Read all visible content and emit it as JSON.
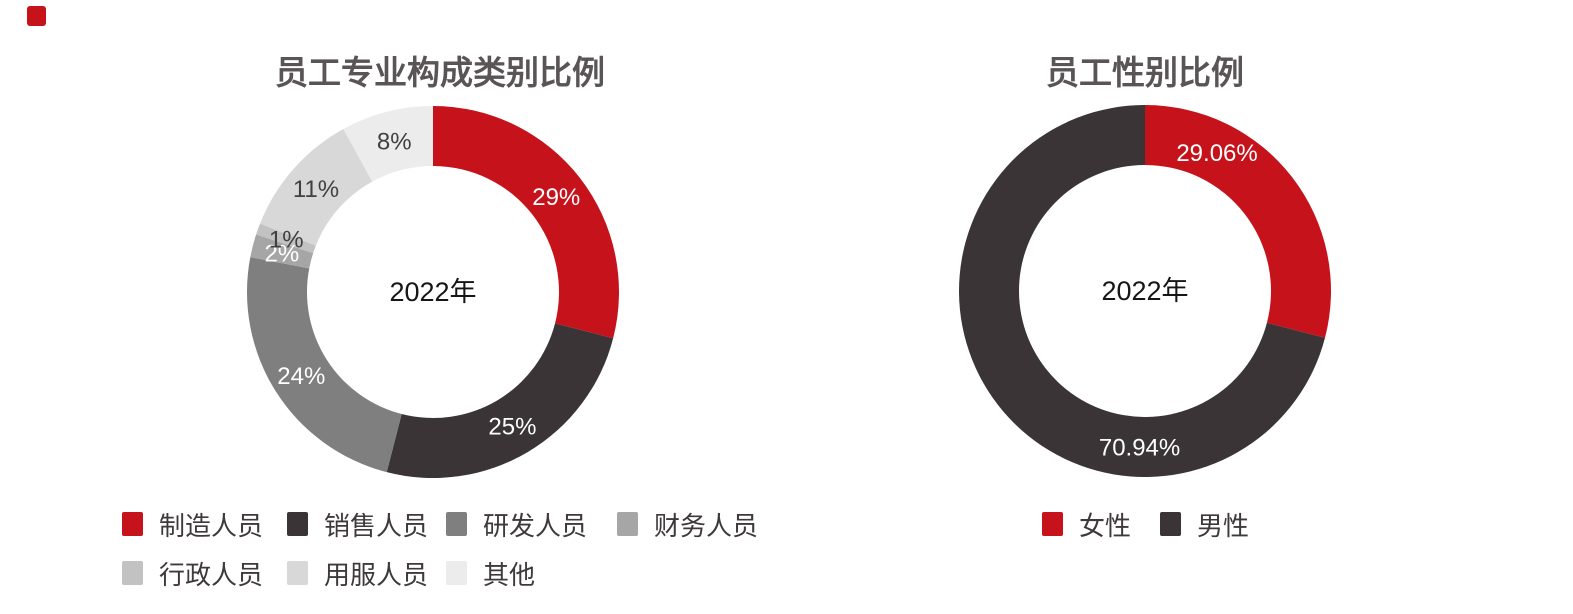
{
  "page": {
    "background": "#ffffff"
  },
  "decor": {
    "corner_mark_color": "#c6121a"
  },
  "chart_data": [
    {
      "type": "donut",
      "title": "员工专业构成类别比例",
      "center_label": "2022年",
      "legend_position": "bottom",
      "segments": [
        {
          "label": "制造人员",
          "value": 29,
          "display": "29%",
          "color": "#c6121a",
          "label_color": "#ffffff"
        },
        {
          "label": "销售人员",
          "value": 25,
          "display": "25%",
          "color": "#3a3436",
          "label_color": "#ffffff"
        },
        {
          "label": "研发人员",
          "value": 24,
          "display": "24%",
          "color": "#7f7f7f",
          "label_color": "#ffffff"
        },
        {
          "label": "财务人员",
          "value": 2,
          "display": "2%",
          "color": "#a6a6a6",
          "label_color": "#ffffff"
        },
        {
          "label": "行政人员",
          "value": 1,
          "display": "1%",
          "color": "#c2c2c2",
          "label_color": "#404040"
        },
        {
          "label": "用服人员",
          "value": 11,
          "display": "11%",
          "color": "#d8d8d8",
          "label_color": "#404040"
        },
        {
          "label": "其他",
          "value": 8,
          "display": "8%",
          "color": "#ececec",
          "label_color": "#404040"
        }
      ]
    },
    {
      "type": "donut",
      "title": "员工性别比例",
      "center_label": "2022年",
      "legend_position": "bottom",
      "segments": [
        {
          "label": "女性",
          "value": 29.06,
          "display": "29.06%",
          "color": "#c6121a",
          "label_color": "#ffffff",
          "label_angle": 27.5
        },
        {
          "label": "男性",
          "value": 70.94,
          "display": "70.94%",
          "color": "#3a3436",
          "label_color": "#ffffff",
          "label_angle": 182
        }
      ]
    }
  ]
}
